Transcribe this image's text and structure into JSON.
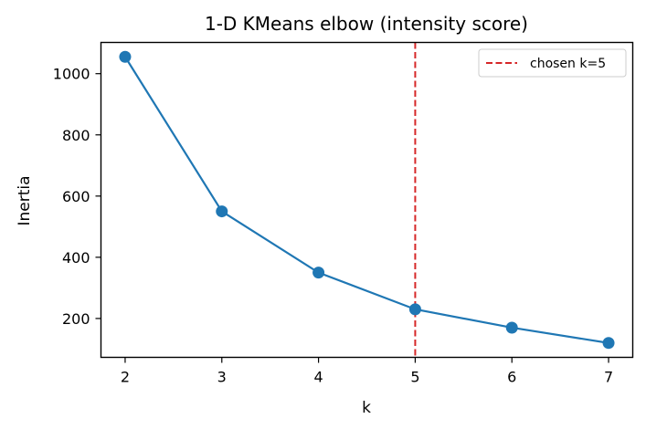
{
  "chart_data": {
    "type": "line",
    "title": "1-D KMeans elbow (intensity score)",
    "xlabel": "k",
    "ylabel": "Inertia",
    "x": [
      2,
      3,
      4,
      5,
      6,
      7
    ],
    "series": [
      {
        "name": "inertia",
        "values": [
          1055,
          550,
          350,
          230,
          170,
          120
        ],
        "color": "#1f77b4",
        "marker": "circle"
      }
    ],
    "xticks": [
      2,
      3,
      4,
      5,
      6,
      7
    ],
    "yticks": [
      200,
      400,
      600,
      800,
      1000
    ],
    "xlim": [
      1.75,
      7.25
    ],
    "ylim": [
      73,
      1102
    ],
    "grid": false,
    "annotations": [
      {
        "type": "vline",
        "x": 5,
        "style": "dashed",
        "color": "#d62728",
        "label": "chosen k=5"
      }
    ],
    "legend": {
      "position": "upper right",
      "entries": [
        "chosen k=5"
      ]
    }
  },
  "colors": {
    "line": "#1f77b4",
    "vline": "#d62728",
    "axes": "#000000",
    "legend_border": "#cccccc"
  }
}
